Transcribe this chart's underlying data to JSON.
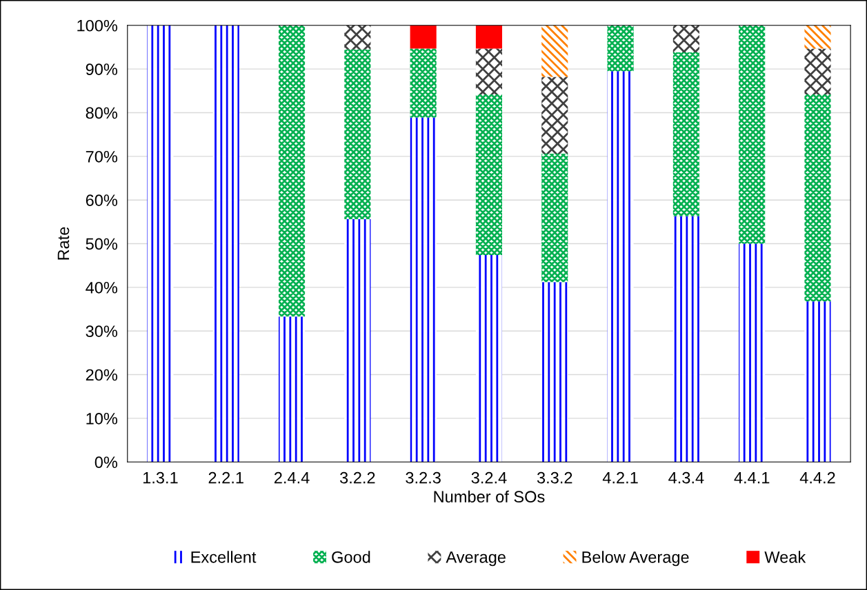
{
  "chart_data": {
    "type": "bar",
    "stacked": true,
    "xlabel": "Number of SOs",
    "ylabel": "Rate",
    "categories": [
      "1.3.1",
      "2.2.1",
      "2.4.4",
      "3.2.2",
      "3.2.3",
      "3.2.4",
      "3.3.2",
      "4.2.1",
      "4.3.4",
      "4.4.1",
      "4.4.2"
    ],
    "series": [
      {
        "name": "Excellent",
        "color": "#0000ff",
        "values": [
          100,
          100,
          33.3,
          55.6,
          78.9,
          47.4,
          41.2,
          89.5,
          56.3,
          50,
          36.8
        ]
      },
      {
        "name": "Good",
        "color": "#00b050",
        "values": [
          0,
          0,
          66.7,
          38.9,
          15.8,
          36.8,
          29.4,
          10.5,
          37.5,
          50,
          47.4
        ]
      },
      {
        "name": "Average",
        "color": "#404040",
        "values": [
          0,
          0,
          0,
          5.5,
          0,
          10.5,
          17.6,
          0,
          6.2,
          0,
          10.5
        ]
      },
      {
        "name": "Below Average",
        "color": "#ff8000",
        "values": [
          0,
          0,
          0,
          0,
          0,
          0,
          11.8,
          0,
          0,
          0,
          5.3
        ]
      },
      {
        "name": "Weak",
        "color": "#ff0000",
        "values": [
          0,
          0,
          0,
          0,
          5.3,
          5.3,
          0,
          0,
          0,
          0,
          0
        ]
      }
    ],
    "ylim": [
      0,
      100
    ],
    "yticks": [
      {
        "value": 0,
        "label": "0%"
      },
      {
        "value": 10,
        "label": "10%"
      },
      {
        "value": 20,
        "label": "20%"
      },
      {
        "value": 30,
        "label": "30%"
      },
      {
        "value": 40,
        "label": "40%"
      },
      {
        "value": 50,
        "label": "50%"
      },
      {
        "value": 60,
        "label": "60%"
      },
      {
        "value": 70,
        "label": "70%"
      },
      {
        "value": 80,
        "label": "80%"
      },
      {
        "value": 90,
        "label": "90%"
      },
      {
        "value": 100,
        "label": "100%"
      }
    ],
    "grid": "y",
    "legend": "bottom"
  }
}
